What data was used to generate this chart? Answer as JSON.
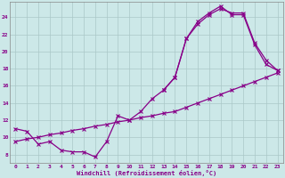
{
  "bg_color": "#cce8e8",
  "line_color": "#880088",
  "grid_color": "#aac8c8",
  "xlabel": "Windchill (Refroidissement éolien,°C)",
  "xlim": [
    -0.5,
    23.5
  ],
  "ylim": [
    7.0,
    25.8
  ],
  "x_ticks": [
    0,
    1,
    2,
    3,
    4,
    5,
    6,
    7,
    8,
    9,
    10,
    11,
    12,
    13,
    14,
    15,
    16,
    17,
    18,
    19,
    20,
    21,
    22,
    23
  ],
  "y_ticks": [
    8,
    10,
    12,
    14,
    16,
    18,
    20,
    22,
    24
  ],
  "curve_main_x": [
    0,
    1,
    2,
    3,
    4,
    5,
    6,
    7,
    8,
    9,
    10,
    11,
    12,
    13,
    14,
    15,
    16,
    17,
    18,
    19,
    20,
    21,
    22,
    23
  ],
  "curve_main_y": [
    11.0,
    10.7,
    9.2,
    9.5,
    8.5,
    8.3,
    8.3,
    7.7,
    9.5,
    12.5,
    12.0,
    13.0,
    14.5,
    15.5,
    17.0,
    21.5,
    23.2,
    24.3,
    25.0,
    24.5,
    24.5,
    21.0,
    19.0,
    17.8
  ],
  "curve_upper_x": [
    13,
    14,
    15,
    16,
    17,
    18,
    19,
    20,
    21,
    22,
    23
  ],
  "curve_upper_y": [
    15.5,
    17.0,
    21.5,
    23.5,
    24.5,
    25.3,
    24.3,
    24.3,
    20.8,
    18.5,
    17.8
  ],
  "curve_diag_x": [
    0,
    1,
    2,
    3,
    4,
    5,
    6,
    7,
    8,
    9,
    10,
    11,
    12,
    13,
    14,
    15,
    16,
    17,
    18,
    19,
    20,
    21,
    22,
    23
  ],
  "curve_diag_y": [
    9.5,
    9.8,
    10.0,
    10.3,
    10.5,
    10.8,
    11.0,
    11.3,
    11.5,
    11.8,
    12.0,
    12.3,
    12.5,
    12.8,
    13.0,
    13.5,
    14.0,
    14.5,
    15.0,
    15.5,
    16.0,
    16.5,
    17.0,
    17.5
  ]
}
